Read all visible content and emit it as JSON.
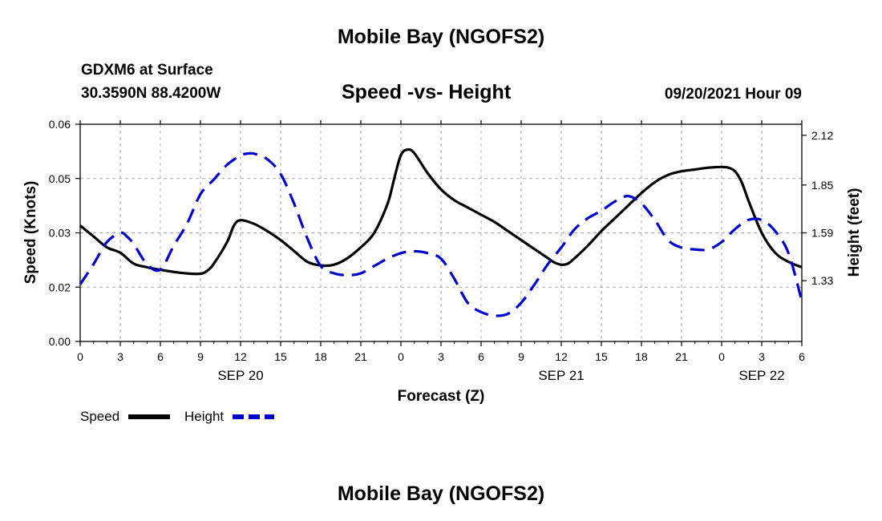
{
  "page": {
    "title": "Mobile Bay (NGOFS2)",
    "footer_title": "Mobile Bay (NGOFS2)",
    "station": "GDXM6 at Surface",
    "coords": "30.3590N  88.4200W",
    "datetime": "09/20/2021 Hour 09"
  },
  "chart_data": {
    "type": "line",
    "title": "Speed -vs- Height",
    "xlabel": "Forecast (Z)",
    "ylabel_left": "Speed (Knots)",
    "ylabel_right": "Height (feet)",
    "x_ticks": [
      "0",
      "3",
      "6",
      "9",
      "12",
      "15",
      "18",
      "21",
      "0",
      "3",
      "6",
      "9",
      "12",
      "15",
      "18",
      "21",
      "0",
      "3",
      "6"
    ],
    "day_labels": [
      {
        "label": "SEP 20",
        "hour": 12
      },
      {
        "label": "SEP 21",
        "hour": 36
      },
      {
        "label": "SEP 22",
        "hour": 51
      }
    ],
    "xlim": [
      0,
      54
    ],
    "left_axis": {
      "ylim": [
        0.0,
        0.06
      ],
      "ticks": [
        "0.00",
        "0.02",
        "0.03",
        "0.05",
        "0.06"
      ],
      "tick_values": [
        0.0,
        0.015,
        0.03,
        0.045,
        0.06
      ]
    },
    "right_axis": {
      "ylim": [
        1.0,
        2.18
      ],
      "ticks": [
        "2.12",
        "1.85",
        "1.59",
        "1.33"
      ],
      "tick_values": [
        2.12,
        1.85,
        1.59,
        1.33
      ]
    },
    "grid": true,
    "legend_position": "bottom-left",
    "series": [
      {
        "name": "Speed",
        "axis": "left",
        "color": "#000000",
        "style": "solid",
        "points": [
          [
            0,
            0.032
          ],
          [
            1,
            0.029
          ],
          [
            2,
            0.026
          ],
          [
            3,
            0.0245
          ],
          [
            4,
            0.0215
          ],
          [
            5,
            0.0205
          ],
          [
            6,
            0.0198
          ],
          [
            7,
            0.0192
          ],
          [
            8,
            0.0188
          ],
          [
            9,
            0.0187
          ],
          [
            9.5,
            0.0195
          ],
          [
            10,
            0.0215
          ],
          [
            11,
            0.0275
          ],
          [
            11.5,
            0.032
          ],
          [
            12,
            0.0335
          ],
          [
            13,
            0.0325
          ],
          [
            14,
            0.0305
          ],
          [
            15,
            0.028
          ],
          [
            16,
            0.025
          ],
          [
            17,
            0.022
          ],
          [
            18,
            0.021
          ],
          [
            19,
            0.0212
          ],
          [
            20,
            0.023
          ],
          [
            21,
            0.026
          ],
          [
            22,
            0.03
          ],
          [
            23,
            0.038
          ],
          [
            23.5,
            0.045
          ],
          [
            24,
            0.0515
          ],
          [
            24.5,
            0.053
          ],
          [
            25,
            0.052
          ],
          [
            26,
            0.0465
          ],
          [
            27,
            0.042
          ],
          [
            28,
            0.039
          ],
          [
            29,
            0.037
          ],
          [
            30,
            0.035
          ],
          [
            31,
            0.033
          ],
          [
            32,
            0.0305
          ],
          [
            33,
            0.028
          ],
          [
            34,
            0.0255
          ],
          [
            35,
            0.023
          ],
          [
            35.5,
            0.0218
          ],
          [
            36,
            0.0212
          ],
          [
            36.5,
            0.0215
          ],
          [
            37,
            0.023
          ],
          [
            38,
            0.0265
          ],
          [
            39,
            0.0305
          ],
          [
            40,
            0.034
          ],
          [
            41,
            0.0375
          ],
          [
            42,
            0.041
          ],
          [
            43,
            0.044
          ],
          [
            44,
            0.046
          ],
          [
            45,
            0.047
          ],
          [
            46,
            0.0475
          ],
          [
            47,
            0.048
          ],
          [
            48,
            0.0482
          ],
          [
            48.5,
            0.048
          ],
          [
            49,
            0.047
          ],
          [
            49.5,
            0.044
          ],
          [
            50,
            0.039
          ],
          [
            51,
            0.03
          ],
          [
            52,
            0.0245
          ],
          [
            53,
            0.022
          ],
          [
            54,
            0.0205
          ]
        ]
      },
      {
        "name": "Height",
        "axis": "right",
        "color": "#0000cc",
        "style": "dashed",
        "points": [
          [
            0,
            1.31
          ],
          [
            1,
            1.42
          ],
          [
            2,
            1.54
          ],
          [
            3,
            1.59
          ],
          [
            3.5,
            1.57
          ],
          [
            4,
            1.53
          ],
          [
            5,
            1.42
          ],
          [
            6,
            1.39
          ],
          [
            7,
            1.52
          ],
          [
            8,
            1.64
          ],
          [
            9,
            1.8
          ],
          [
            10,
            1.88
          ],
          [
            11,
            1.96
          ],
          [
            12,
            2.01
          ],
          [
            12.5,
            2.02
          ],
          [
            13,
            2.02
          ],
          [
            14,
            1.99
          ],
          [
            15,
            1.91
          ],
          [
            16,
            1.75
          ],
          [
            17,
            1.56
          ],
          [
            18,
            1.41
          ],
          [
            19,
            1.37
          ],
          [
            20,
            1.36
          ],
          [
            21,
            1.37
          ],
          [
            22,
            1.41
          ],
          [
            23,
            1.45
          ],
          [
            24,
            1.48
          ],
          [
            25,
            1.49
          ],
          [
            26,
            1.48
          ],
          [
            27,
            1.45
          ],
          [
            28,
            1.34
          ],
          [
            29,
            1.21
          ],
          [
            30,
            1.16
          ],
          [
            31,
            1.14
          ],
          [
            32,
            1.15
          ],
          [
            33,
            1.21
          ],
          [
            34,
            1.31
          ],
          [
            35,
            1.42
          ],
          [
            36,
            1.51
          ],
          [
            37,
            1.61
          ],
          [
            38,
            1.67
          ],
          [
            39,
            1.71
          ],
          [
            40,
            1.76
          ],
          [
            41,
            1.79
          ],
          [
            42,
            1.75
          ],
          [
            43,
            1.66
          ],
          [
            44,
            1.55
          ],
          [
            45,
            1.51
          ],
          [
            46,
            1.5
          ],
          [
            47,
            1.5
          ],
          [
            48,
            1.54
          ],
          [
            49,
            1.61
          ],
          [
            50,
            1.66
          ],
          [
            51,
            1.66
          ],
          [
            52,
            1.6
          ],
          [
            53,
            1.48
          ],
          [
            54,
            1.22
          ]
        ]
      }
    ]
  }
}
